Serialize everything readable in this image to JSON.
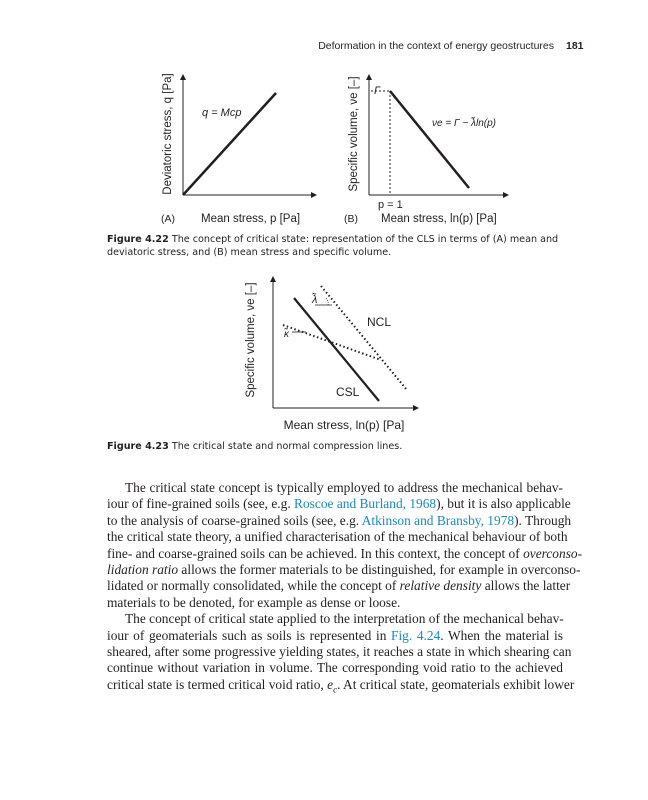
{
  "header": {
    "running_title": "Deformation in the context of energy geostructures",
    "page_number": "181"
  },
  "figure_4_22": {
    "panel_a": {
      "label": "(A)",
      "ylabel": "Deviatoric stress, q [Pa]",
      "xlabel": "Mean stress, p [Pa]",
      "equation": "q = Mcp"
    },
    "panel_b": {
      "label": "(B)",
      "ylabel": "Specific volume, νe [–]",
      "xlabel": "Mean stress, ln(p) [Pa]",
      "gamma": "Γ",
      "p_marker": "p = 1",
      "equation": "νe = Γ − λ̃ln(p)"
    },
    "caption_number": "Figure 4.22",
    "caption_text": "The concept of critical state: representation of the CLS in terms of (A) mean and deviatoric stress, and (B) mean stress and specific volume."
  },
  "figure_4_23": {
    "ylabel": "Specific volume, νe [–]",
    "xlabel": "Mean stress, ln(p) [Pa]",
    "ncl_label": "NCL",
    "csl_label": "CSL",
    "lambda_label": "λ̃",
    "kappa_label": "κ̃",
    "caption_number": "Figure 4.23",
    "caption_text": "The critical state and normal compression lines."
  },
  "colors": {
    "link": "#1a8ab5",
    "text": "#231f20"
  },
  "body": {
    "paragraphs": [
      {
        "lines": [
          [
            [
              "The critical state concept is typically employed to address the mechanical behav-",
              "n"
            ]
          ],
          [
            [
              "iour of fine-grained soils (see, e.g. ",
              "n"
            ],
            [
              "Roscoe and Burland, 1968",
              "link"
            ],
            [
              "), but it is also applicable",
              "n"
            ]
          ],
          [
            [
              "to the analysis of coarse-grained soils (see, e.g. ",
              "n"
            ],
            [
              "Atkinson and Bransby, 1978",
              "link"
            ],
            [
              "). Through",
              "n"
            ]
          ],
          [
            [
              "the critical state theory, a unified characterisation of the mechanical behaviour of both",
              "n"
            ]
          ],
          [
            [
              "fine- and coarse-grained soils can be achieved. In this context, the concept of ",
              "n"
            ],
            [
              "overconso-",
              "ital"
            ]
          ],
          [
            [
              "lidation ratio",
              "ital"
            ],
            [
              " allows the former materials to be distinguished, for example in overconso-",
              "n"
            ]
          ],
          [
            [
              "lidated or normally consolidated, while the concept of ",
              "n"
            ],
            [
              "relative density",
              "ital"
            ],
            [
              " allows the latter",
              "n"
            ]
          ],
          [
            [
              "materials to be denoted, for example as dense or loose.",
              "n"
            ]
          ]
        ]
      },
      {
        "lines": [
          [
            [
              "The concept of critical state applied to the interpretation of the mechanical behav-",
              "n"
            ]
          ],
          [
            [
              "iour of geomaterials such as soils is represented in ",
              "n"
            ],
            [
              "Fig. 4.24",
              "link"
            ],
            [
              ". When the material is",
              "n"
            ]
          ],
          [
            [
              "sheared, after some progressive yielding states, it reaches a state in which shearing can",
              "n"
            ]
          ],
          [
            [
              "continue without variation in volume. The corresponding void ratio to the achieved",
              "n"
            ]
          ],
          [
            [
              "critical state is termed critical void ratio, ",
              "n"
            ],
            [
              "e",
              "ital"
            ],
            [
              "c",
              "sub"
            ],
            [
              ". At critical state, geomaterials exhibit lower",
              "n"
            ]
          ]
        ]
      }
    ]
  }
}
